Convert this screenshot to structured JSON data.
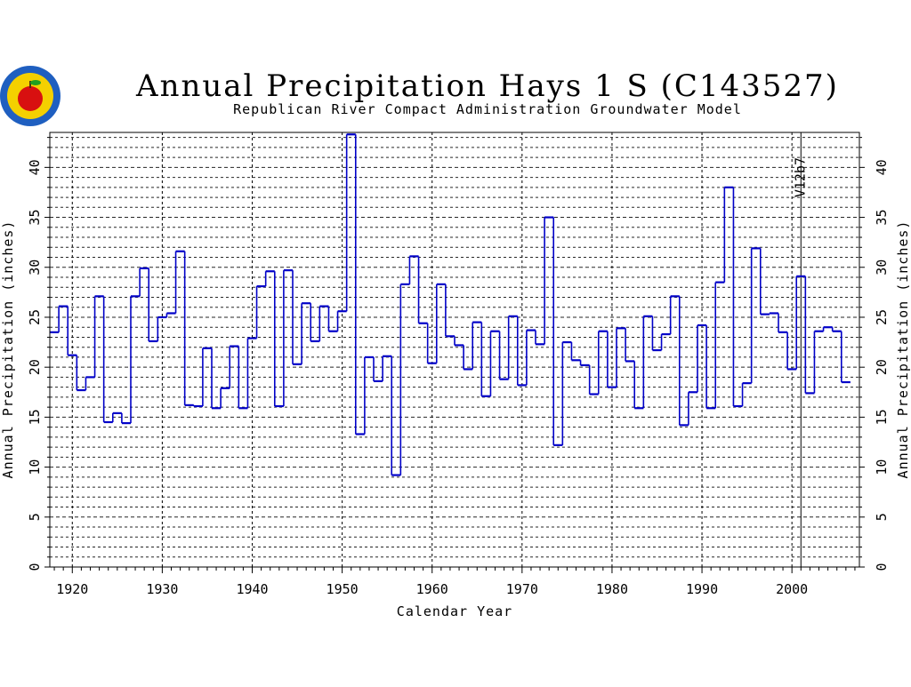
{
  "chart_data": {
    "type": "line",
    "style": "step",
    "title": "Annual Precipitation Hays 1 S (C143527)",
    "subtitle": "Republican River Compact Administration Groundwater Model",
    "xlabel": "Calendar Year",
    "ylabel": "Annual Precipitation (inches)",
    "xlim": [
      1917.5,
      2007.5
    ],
    "ylim": [
      0,
      43.5
    ],
    "x_ticks": [
      1920,
      1930,
      1940,
      1950,
      1960,
      1970,
      1980,
      1990,
      2000
    ],
    "y_ticks": [
      0,
      5,
      10,
      15,
      20,
      25,
      30,
      35,
      40
    ],
    "grid": true,
    "line_color": "#0000c8",
    "annotation": {
      "text": "V12b7",
      "x": 2001
    },
    "series": [
      {
        "x": [
          1918,
          1919,
          1920,
          1921,
          1922,
          1923,
          1924,
          1925,
          1926,
          1927,
          1928,
          1929,
          1930,
          1931,
          1932,
          1933,
          1934,
          1935,
          1936,
          1937,
          1938,
          1939,
          1940,
          1941,
          1942,
          1943,
          1944,
          1945,
          1946,
          1947,
          1948,
          1949,
          1950,
          1951,
          1952,
          1953,
          1954,
          1955,
          1956,
          1957,
          1958,
          1959,
          1960,
          1961,
          1962,
          1963,
          1964,
          1965,
          1966,
          1967,
          1968,
          1969,
          1970,
          1971,
          1972,
          1973,
          1974,
          1975,
          1976,
          1977,
          1978,
          1979,
          1980,
          1981,
          1982,
          1983,
          1984,
          1985,
          1986,
          1987,
          1988,
          1989,
          1990,
          1991,
          1992,
          1993,
          1994,
          1995,
          1996,
          1997,
          1998,
          1999,
          2000,
          2001,
          2002,
          2003,
          2004,
          2005,
          2006
        ],
        "values": [
          23.5,
          26.1,
          21.2,
          17.7,
          19.0,
          27.1,
          14.5,
          15.4,
          14.4,
          27.1,
          29.9,
          22.6,
          25.0,
          25.4,
          31.6,
          16.2,
          16.1,
          21.9,
          15.9,
          17.9,
          22.1,
          15.9,
          22.9,
          28.1,
          29.6,
          16.1,
          29.7,
          20.3,
          26.4,
          22.6,
          26.1,
          23.6,
          25.6,
          43.3,
          13.3,
          21.0,
          18.6,
          21.1,
          9.2,
          28.3,
          31.1,
          24.4,
          20.4,
          28.3,
          23.1,
          22.2,
          19.8,
          24.5,
          17.1,
          23.6,
          18.8,
          25.1,
          18.2,
          23.7,
          22.3,
          35.0,
          12.2,
          22.5,
          20.7,
          20.2,
          17.3,
          23.6,
          18.0,
          23.9,
          20.6,
          15.9,
          25.1,
          21.7,
          23.3,
          27.1,
          14.2,
          17.5,
          24.2,
          15.9,
          28.5,
          38.0,
          16.1,
          18.4,
          31.9,
          25.3,
          25.4,
          23.5,
          19.8,
          29.1,
          17.4,
          23.6,
          24.0,
          23.6,
          18.5
        ]
      }
    ]
  }
}
